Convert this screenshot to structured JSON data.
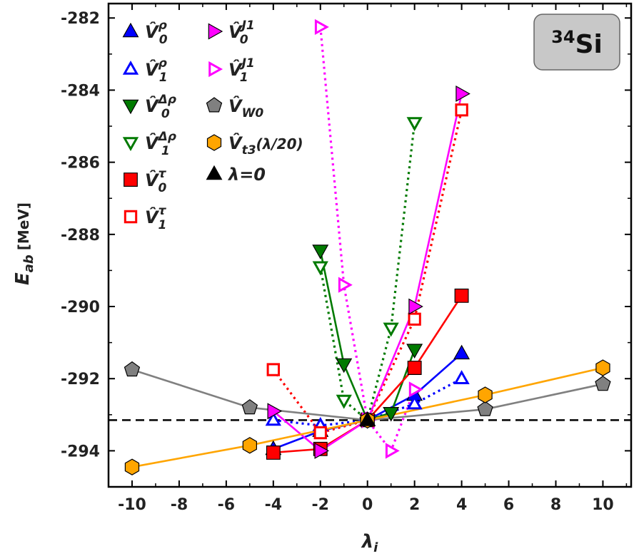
{
  "chart_data": {
    "type": "line",
    "title": "",
    "xlabel": "λ",
    "xlabel_sub": "i",
    "ylabel": "E",
    "ylabel_sub": "ab",
    "ylabel_unit": "[MeV]",
    "xlim": [
      -11,
      11.2
    ],
    "ylim": [
      -295.0,
      -281.6
    ],
    "xticks": [
      -10,
      -8,
      -6,
      -4,
      -2,
      0,
      2,
      4,
      6,
      8,
      10
    ],
    "xtick_labels": [
      "-10",
      "-8",
      "-6",
      "-4",
      "-2",
      "0",
      "2",
      "4",
      "6",
      "8",
      "10"
    ],
    "yticks": [
      -294,
      -292,
      -290,
      -288,
      -286,
      -284,
      -282
    ],
    "ytick_labels": [
      "-294",
      "-292",
      "-290",
      "-288",
      "-286",
      "-284",
      "-282"
    ],
    "reference_line_y": -293.15,
    "badge": {
      "mass": "34",
      "element": "Si"
    },
    "grid": false,
    "legend_position": "top-left",
    "series": [
      {
        "label_main": "V",
        "label_sub": "0",
        "label_sup": "ρ",
        "color": "#0000ff",
        "marker": "triangle-up",
        "filled": true,
        "line": "solid",
        "x": [
          -4,
          -2,
          0,
          2,
          4
        ],
        "y": [
          -293.95,
          -293.45,
          -293.15,
          -292.45,
          -291.3
        ]
      },
      {
        "label_main": "V",
        "label_sub": "1",
        "label_sup": "ρ",
        "color": "#0000ff",
        "marker": "triangle-up",
        "filled": false,
        "line": "dotted",
        "x": [
          -4,
          -2,
          0,
          2,
          4
        ],
        "y": [
          -293.15,
          -293.3,
          -293.15,
          -292.7,
          -292.0
        ]
      },
      {
        "label_main": "V",
        "label_sub": "0",
        "label_sup": "Δρ",
        "color": "#007a00",
        "marker": "triangle-down",
        "filled": true,
        "line": "solid",
        "x": [
          -2,
          -1,
          0,
          1,
          2
        ],
        "y": [
          -288.45,
          -291.6,
          -293.15,
          -292.95,
          -291.2
        ]
      },
      {
        "label_main": "V",
        "label_sub": "1",
        "label_sup": "Δρ",
        "color": "#007a00",
        "marker": "triangle-down",
        "filled": false,
        "line": "dotted",
        "x": [
          -2,
          -1,
          0,
          1,
          2
        ],
        "y": [
          -288.9,
          -292.6,
          -293.15,
          -290.6,
          -284.9
        ]
      },
      {
        "label_main": "V",
        "label_sub": "0",
        "label_sup": "τ",
        "color": "#ff0000",
        "marker": "square",
        "filled": true,
        "line": "solid",
        "x": [
          -4,
          -2,
          0,
          2,
          4
        ],
        "y": [
          -294.05,
          -293.95,
          -293.15,
          -291.7,
          -289.7
        ]
      },
      {
        "label_main": "V",
        "label_sub": "1",
        "label_sup": "τ",
        "color": "#ff0000",
        "marker": "square",
        "filled": false,
        "line": "dotted",
        "x": [
          -4,
          -2,
          0,
          2,
          4
        ],
        "y": [
          -291.75,
          -293.5,
          -293.15,
          -290.35,
          -284.55
        ]
      },
      {
        "label_main": "V",
        "label_sub": "0",
        "label_sup": "J1",
        "color": "#ff00ff",
        "marker": "triangle-right",
        "filled": true,
        "line": "solid",
        "x": [
          -4,
          -2,
          0,
          2,
          4
        ],
        "y": [
          -292.9,
          -294.0,
          -293.15,
          -290.0,
          -284.1
        ]
      },
      {
        "label_main": "V",
        "label_sub": "1",
        "label_sup": "J1",
        "color": "#ff00ff",
        "marker": "triangle-right",
        "filled": false,
        "line": "dotted",
        "x": [
          -2,
          -1,
          0,
          1,
          2
        ],
        "y": [
          -282.25,
          -289.4,
          -293.15,
          -294.0,
          -292.3
        ]
      },
      {
        "label_main": "V",
        "label_sub": "W0",
        "label_sup": "",
        "color": "#808080",
        "marker": "pentagon",
        "filled": true,
        "line": "solid",
        "x": [
          -10,
          -5,
          0,
          5,
          10
        ],
        "y": [
          -291.75,
          -292.8,
          -293.15,
          -292.85,
          -292.15
        ]
      },
      {
        "label_main": "V",
        "label_sub": "t3",
        "label_sup": "",
        "label_suffix": "(λ/20)",
        "color": "#ffa500",
        "marker": "hexagon",
        "filled": true,
        "line": "solid",
        "x": [
          -10,
          -5,
          0,
          5,
          10
        ],
        "y": [
          -294.45,
          -293.85,
          -293.15,
          -292.45,
          -291.7
        ]
      },
      {
        "label_main": "λ=0",
        "label_sub": "",
        "label_sup": "",
        "color": "#000000",
        "marker": "triangle-up",
        "filled": true,
        "line": "none",
        "x": [
          0
        ],
        "y": [
          -293.15
        ]
      }
    ]
  }
}
